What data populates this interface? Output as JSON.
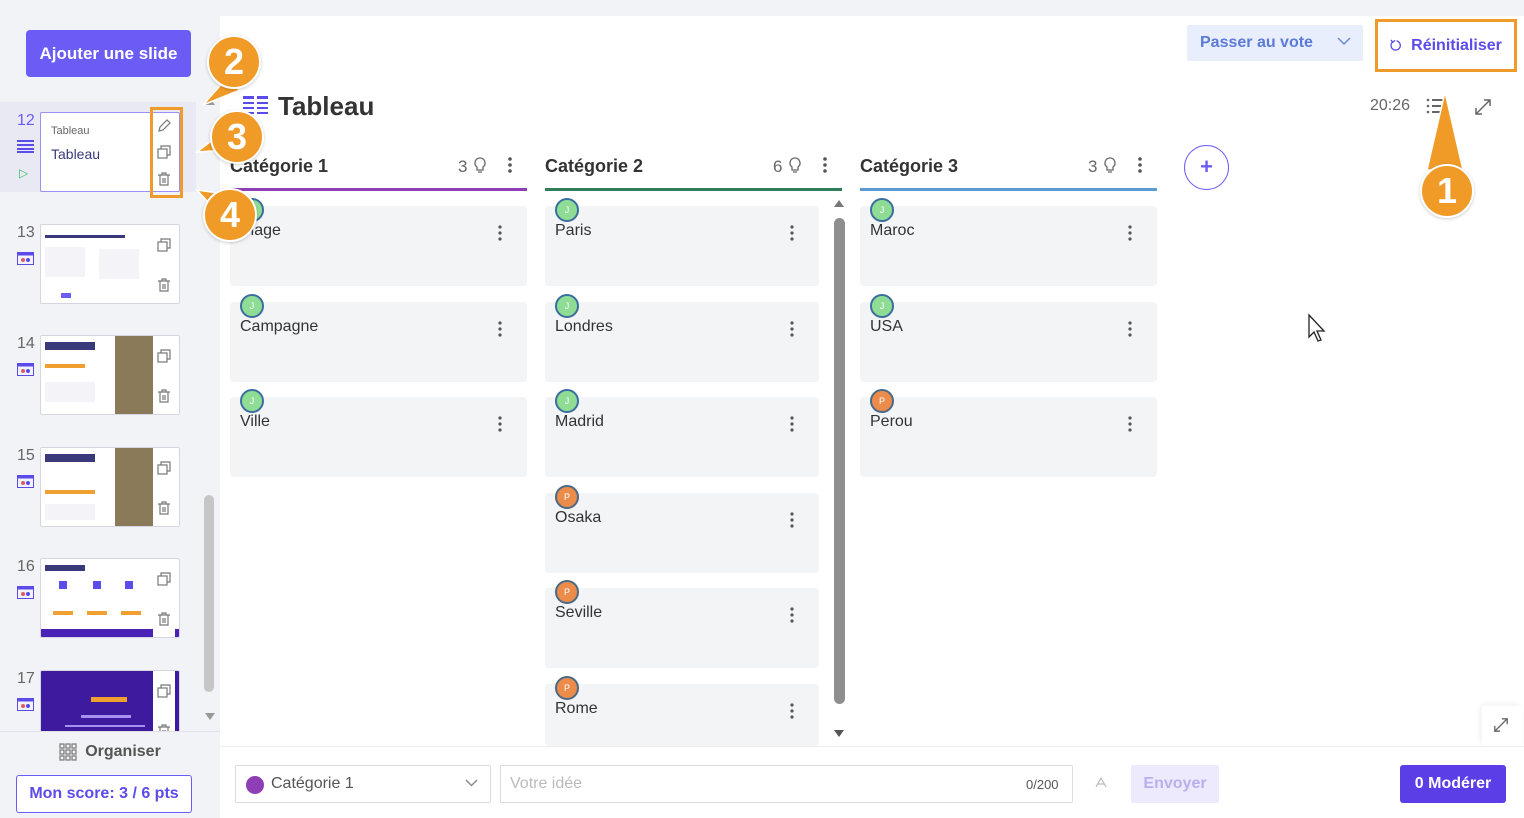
{
  "sidebar": {
    "add_slide_label": "Ajouter une slide",
    "slides": [
      {
        "num": "12",
        "title": "Tableau",
        "subtitle": "Tableau"
      },
      {
        "num": "13"
      },
      {
        "num": "14"
      },
      {
        "num": "15"
      },
      {
        "num": "16"
      },
      {
        "num": "17"
      }
    ],
    "organiser_label": "Organiser",
    "score_label": "Mon score: 3 / 6 pts"
  },
  "header": {
    "vote_label": "Passer au vote",
    "reset_label": "Réinitialiser",
    "board_title": "Tableau",
    "timer": "20:26"
  },
  "columns": [
    {
      "name": "Catégorie 1",
      "count": "3",
      "color": "#8e3fb5",
      "cards": [
        "Plage",
        "Campagne",
        "Ville"
      ]
    },
    {
      "name": "Catégorie 2",
      "count": "6",
      "color": "#2e7d5b",
      "cards": [
        "Paris",
        "Londres",
        "Madrid",
        "Osaka",
        "Seville",
        "Rome"
      ]
    },
    {
      "name": "Catégorie 3",
      "count": "3",
      "color": "#5b9bd5",
      "cards": [
        "Maroc",
        "USA",
        "Perou"
      ]
    }
  ],
  "avatars": {
    "j": "J",
    "p": "P"
  },
  "bottom": {
    "category_selected": "Catégorie 1",
    "idea_placeholder": "Votre idée",
    "char_count": "0/200",
    "send_label": "Envoyer",
    "moderate_label": "0 Modérer"
  },
  "callouts": [
    "1",
    "2",
    "3",
    "4"
  ],
  "colors": {
    "accent": "#6b5cf6",
    "highlight": "#ef9b2c"
  }
}
